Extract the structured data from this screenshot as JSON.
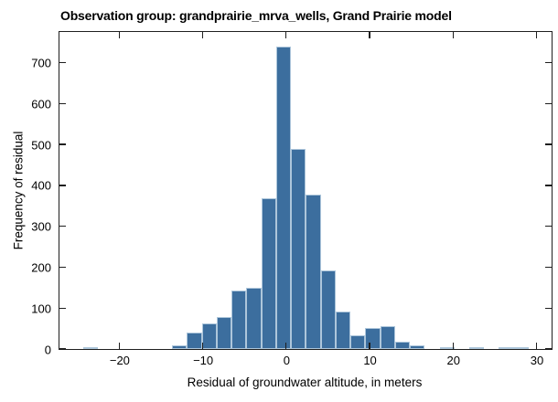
{
  "title": "Observation group: grandprairie_mrva_wells, Grand Prairie model",
  "chart_data": {
    "type": "bar",
    "subtype": "histogram",
    "title": "Observation group: grandprairie_mrva_wells, Grand Prairie model",
    "xlabel": "Residual of groundwater altitude, in meters",
    "ylabel": "Frequency of residual",
    "grid": false,
    "legend": null,
    "bin_start": -24.34,
    "bin_width": 1.78,
    "frequencies": [
      5,
      0,
      0,
      0,
      0,
      0,
      8,
      40,
      62,
      79,
      142,
      150,
      368,
      740,
      490,
      377,
      191,
      91,
      33,
      52,
      56,
      19,
      10,
      0,
      4,
      0,
      2,
      0,
      2,
      5
    ],
    "xlim": [
      -27.17,
      31.81
    ],
    "ylim": [
      0,
      775
    ],
    "x_ticks": [
      {
        "v": -20,
        "label": "−20"
      },
      {
        "v": -10,
        "label": "−10"
      },
      {
        "v": 0,
        "label": "0"
      },
      {
        "v": 10,
        "label": "10"
      },
      {
        "v": 20,
        "label": "20"
      },
      {
        "v": 30,
        "label": "30"
      }
    ],
    "y_ticks": [
      {
        "v": 0,
        "label": "0"
      },
      {
        "v": 100,
        "label": "100"
      },
      {
        "v": 200,
        "label": "200"
      },
      {
        "v": 300,
        "label": "300"
      },
      {
        "v": 400,
        "label": "400"
      },
      {
        "v": 500,
        "label": "500"
      },
      {
        "v": 600,
        "label": "600"
      },
      {
        "v": 700,
        "label": "700"
      }
    ],
    "bar_color": "#3c6e9e",
    "bar_edge_color": "#adc6db",
    "axis_color": "#1f1f1f",
    "text_color": "#000000"
  }
}
